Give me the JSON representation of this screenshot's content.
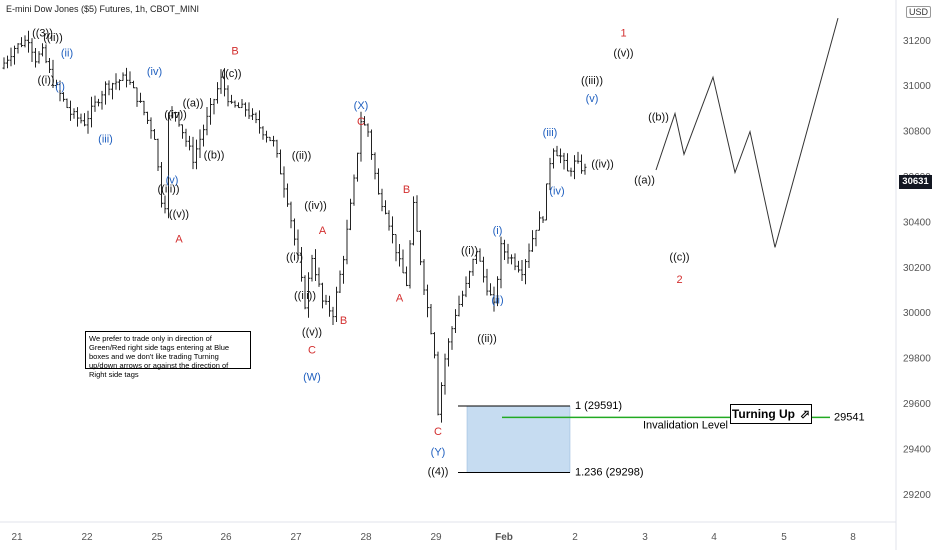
{
  "header": {
    "title": "E-mini Dow Jones ($5) Futures, 1h, CBOT_MINI",
    "currency": "USD"
  },
  "price_badge": "30631",
  "note_text": "We prefer to trade only in direction of Green/Red right side tags entering at Blue boxes and we don't like trading Turning up/down arrows or against the direction of Right side tags",
  "turning_label": "Turning Up",
  "turning_icon": "arrow-up-right-icon",
  "colors": {
    "bars": "#222222",
    "red_labels": "#d32f2f",
    "blue_labels": "#1f5fbf",
    "invalidation": "#22aa22",
    "blue_box": "#c6dcf1",
    "projection": "#333333"
  },
  "chart_data": {
    "type": "ohlc",
    "x_ticks": [
      "21",
      "22",
      "25",
      "26",
      "27",
      "28",
      "29",
      "Feb",
      "2",
      "3",
      "4",
      "5",
      "8"
    ],
    "y_ticks": [
      29200,
      29400,
      29600,
      29800,
      30000,
      30200,
      30400,
      30600,
      30800,
      31000,
      31200
    ],
    "ylim": [
      29080,
      31380
    ],
    "price_path": [
      [
        0,
        31080
      ],
      [
        4,
        31170
      ],
      [
        8,
        31210
      ],
      [
        10,
        31120
      ],
      [
        12,
        31150
      ],
      [
        15,
        31020
      ],
      [
        20,
        30880
      ],
      [
        24,
        30840
      ],
      [
        30,
        31000
      ],
      [
        36,
        31040
      ],
      [
        40,
        30920
      ],
      [
        44,
        30780
      ],
      [
        46,
        30500
      ],
      [
        47,
        30480
      ],
      [
        48,
        30860
      ],
      [
        50,
        30890
      ],
      [
        53,
        30760
      ],
      [
        55,
        30680
      ],
      [
        60,
        30900
      ],
      [
        63,
        31030
      ],
      [
        66,
        30910
      ],
      [
        70,
        30900
      ],
      [
        74,
        30820
      ],
      [
        78,
        30750
      ],
      [
        82,
        30500
      ],
      [
        85,
        30240
      ],
      [
        87,
        30040
      ],
      [
        89,
        30250
      ],
      [
        92,
        30050
      ],
      [
        95,
        30000
      ],
      [
        98,
        30250
      ],
      [
        101,
        30580
      ],
      [
        103,
        30850
      ],
      [
        105,
        30800
      ],
      [
        108,
        30520
      ],
      [
        110,
        30460
      ],
      [
        114,
        30220
      ],
      [
        116,
        30130
      ],
      [
        118,
        30470
      ],
      [
        121,
        30120
      ],
      [
        124,
        29830
      ],
      [
        125,
        29570
      ],
      [
        127,
        29800
      ],
      [
        130,
        30000
      ],
      [
        133,
        30120
      ],
      [
        136,
        30280
      ],
      [
        138,
        30160
      ],
      [
        141,
        30030
      ],
      [
        143,
        30290
      ],
      [
        146,
        30240
      ],
      [
        149,
        30190
      ],
      [
        153,
        30380
      ],
      [
        155,
        30430
      ],
      [
        157,
        30670
      ],
      [
        158,
        30730
      ],
      [
        160,
        30690
      ],
      [
        162,
        30620
      ],
      [
        164,
        30660
      ],
      [
        167,
        30631
      ]
    ],
    "projection": [
      [
        30631,
        0
      ],
      [
        30880,
        0
      ],
      [
        30700,
        0
      ],
      [
        31040,
        0
      ],
      [
        30620,
        0
      ],
      [
        30800,
        0
      ],
      [
        30290,
        0
      ],
      [
        31300,
        0
      ]
    ],
    "levels": {
      "fib_1": "1 (29591)",
      "fib_1236": "1.236 (29298)",
      "invalidation_value": "29541",
      "invalidation_text": "Invalidation Level"
    },
    "labels": [
      {
        "text": "((3))",
        "price": 31220,
        "i": 11,
        "color": "black",
        "pos": "above"
      },
      {
        "text": "((ii))",
        "price": 31200,
        "i": 14,
        "color": "black",
        "pos": "above"
      },
      {
        "text": "(ii)",
        "price": 31130,
        "i": 18,
        "color": "blue",
        "pos": "above"
      },
      {
        "text": "((i))",
        "price": 31030,
        "i": 12,
        "color": "black",
        "pos": "below"
      },
      {
        "text": "(i)",
        "price": 31000,
        "i": 16,
        "color": "blue",
        "pos": "below"
      },
      {
        "text": "(iii)",
        "price": 30770,
        "i": 29,
        "color": "blue",
        "pos": "below"
      },
      {
        "text": "(iv)",
        "price": 31050,
        "i": 43,
        "color": "blue",
        "pos": "above"
      },
      {
        "text": "B",
        "price": 31140,
        "i": 66,
        "color": "red",
        "pos": "above"
      },
      {
        "text": "((c))",
        "price": 31040,
        "i": 65,
        "color": "black",
        "pos": "above"
      },
      {
        "text": "((a))",
        "price": 30910,
        "i": 54,
        "color": "black",
        "pos": "above"
      },
      {
        "text": "((iv))",
        "price": 30860,
        "i": 49,
        "color": "black",
        "pos": "above"
      },
      {
        "text": "((b))",
        "price": 30700,
        "i": 60,
        "color": "black",
        "pos": "below"
      },
      {
        "text": "(v)",
        "price": 30590,
        "i": 48,
        "color": "blue",
        "pos": "below"
      },
      {
        "text": "((iii))",
        "price": 30550,
        "i": 47,
        "color": "black",
        "pos": "below"
      },
      {
        "text": "((v))",
        "price": 30440,
        "i": 50,
        "color": "black",
        "pos": "below"
      },
      {
        "text": "A",
        "price": 30330,
        "i": 50,
        "color": "red",
        "pos": "below"
      },
      {
        "text": "((ii))",
        "price": 30680,
        "i": 85,
        "color": "black",
        "pos": "above"
      },
      {
        "text": "((iv))",
        "price": 30460,
        "i": 89,
        "color": "black",
        "pos": "above"
      },
      {
        "text": "A",
        "price": 30350,
        "i": 91,
        "color": "red",
        "pos": "above"
      },
      {
        "text": "((i))",
        "price": 30250,
        "i": 83,
        "color": "black",
        "pos": "below"
      },
      {
        "text": "((iii))",
        "price": 30080,
        "i": 86,
        "color": "black",
        "pos": "below"
      },
      {
        "text": "((v))",
        "price": 29920,
        "i": 88,
        "color": "black",
        "pos": "below"
      },
      {
        "text": "C",
        "price": 29840,
        "i": 88,
        "color": "red",
        "pos": "below"
      },
      {
        "text": "(W)",
        "price": 29720,
        "i": 88,
        "color": "blue",
        "pos": "below"
      },
      {
        "text": "B",
        "price": 29970,
        "i": 97,
        "color": "red",
        "pos": "below"
      },
      {
        "text": "(X)",
        "price": 30900,
        "i": 102,
        "color": "blue",
        "pos": "above"
      },
      {
        "text": "C",
        "price": 30830,
        "i": 102,
        "color": "red",
        "pos": "above"
      },
      {
        "text": "B",
        "price": 30530,
        "i": 115,
        "color": "red",
        "pos": "above"
      },
      {
        "text": "A",
        "price": 30070,
        "i": 113,
        "color": "red",
        "pos": "below"
      },
      {
        "text": "C",
        "price": 29480,
        "i": 124,
        "color": "red",
        "pos": "below"
      },
      {
        "text": "(Y)",
        "price": 29390,
        "i": 124,
        "color": "blue",
        "pos": "below"
      },
      {
        "text": "((4))",
        "price": 29305,
        "i": 124,
        "color": "black",
        "pos": "below"
      },
      {
        "text": "((i))",
        "price": 30260,
        "i": 133,
        "color": "black",
        "pos": "above"
      },
      {
        "text": "(i)",
        "price": 30350,
        "i": 141,
        "color": "blue",
        "pos": "above"
      },
      {
        "text": "(ii)",
        "price": 30060,
        "i": 141,
        "color": "blue",
        "pos": "below"
      },
      {
        "text": "((ii))",
        "price": 29890,
        "i": 138,
        "color": "black",
        "pos": "below"
      },
      {
        "text": "(iii)",
        "price": 30780,
        "i": 156,
        "color": "blue",
        "pos": "above"
      },
      {
        "text": "(iv)",
        "price": 30540,
        "i": 158,
        "color": "blue",
        "pos": "below"
      },
      {
        "text": "(v)",
        "price": 30930,
        "i": 168,
        "color": "blue",
        "pos": "above"
      },
      {
        "text": "((iii))",
        "price": 31010,
        "i": 168,
        "color": "black",
        "pos": "above"
      },
      {
        "text": "((iv))",
        "price": 30660,
        "i": 171,
        "color": "black",
        "pos": "below"
      },
      {
        "text": "1",
        "price": 31220,
        "i": 177,
        "color": "red",
        "pos": "above"
      },
      {
        "text": "((v))",
        "price": 31130,
        "i": 177,
        "color": "black",
        "pos": "above"
      },
      {
        "text": "((a))",
        "price": 30590,
        "i": 183,
        "color": "black",
        "pos": "below"
      },
      {
        "text": "((b))",
        "price": 30850,
        "i": 187,
        "color": "black",
        "pos": "above"
      },
      {
        "text": "((c))",
        "price": 30250,
        "i": 193,
        "color": "black",
        "pos": "below"
      },
      {
        "text": "2",
        "price": 30150,
        "i": 193,
        "color": "red",
        "pos": "below"
      }
    ]
  }
}
